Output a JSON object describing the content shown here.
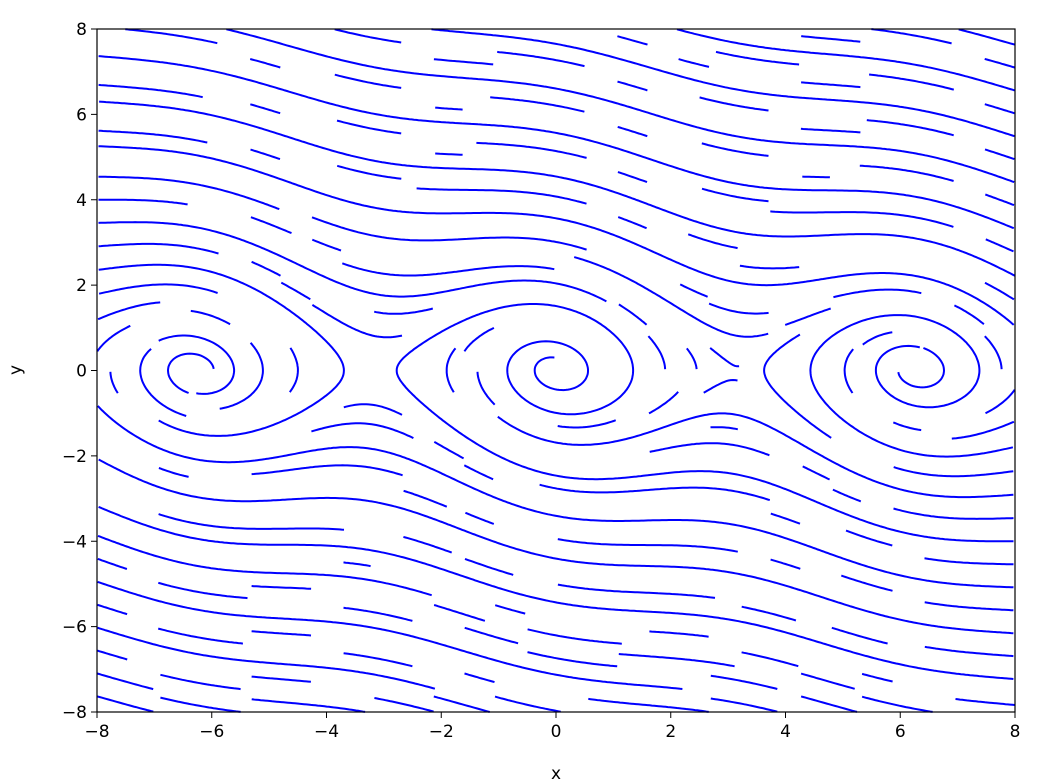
{
  "chart_data": {
    "type": "streamplot",
    "title": "",
    "xlabel": "x",
    "ylabel": "y",
    "xlim": [
      -8,
      8
    ],
    "ylim": [
      -8,
      8
    ],
    "xticks": [
      "−8",
      "−6",
      "−4",
      "−2",
      "0",
      "2",
      "4",
      "6",
      "8"
    ],
    "yticks": [
      "−8",
      "−6",
      "−4",
      "−2",
      "0",
      "2",
      "4",
      "6",
      "8"
    ],
    "xtick_values": [
      -8,
      -6,
      -4,
      -2,
      0,
      2,
      4,
      6,
      8
    ],
    "ytick_values": [
      -8,
      -6,
      -4,
      -2,
      0,
      2,
      4,
      6,
      8
    ],
    "line_color": "#0000ff",
    "grid": false,
    "density": 1,
    "spiral_centers": [
      [
        -6.28,
        0
      ],
      [
        0,
        0
      ],
      [
        6.28,
        0
      ]
    ]
  }
}
